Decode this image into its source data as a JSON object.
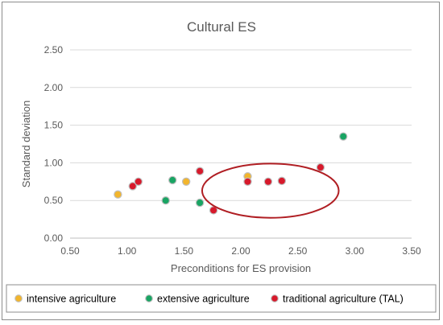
{
  "chart_data": {
    "type": "scatter",
    "title": "Cultural ES",
    "xlabel": "Preconditions for ES provision",
    "ylabel": "Standard deviation",
    "xlim": [
      0.5,
      3.5
    ],
    "ylim": [
      0.0,
      2.5
    ],
    "x_ticks": [
      "0.50",
      "1.00",
      "1.50",
      "2.00",
      "2.50",
      "3.00",
      "3.50"
    ],
    "y_ticks": [
      "0.00",
      "0.50",
      "1.00",
      "1.50",
      "2.00",
      "2.50"
    ],
    "grid": "horizontal",
    "legend_placement": "bottom",
    "series": [
      {
        "name": "intensive agriculture",
        "color": "#f2b52c",
        "points": [
          [
            0.92,
            0.58
          ],
          [
            1.52,
            0.75
          ],
          [
            2.06,
            0.82
          ]
        ]
      },
      {
        "name": "extensive agriculture",
        "color": "#19a463",
        "points": [
          [
            1.34,
            0.5
          ],
          [
            1.4,
            0.77
          ],
          [
            1.64,
            0.47
          ],
          [
            2.9,
            1.35
          ]
        ]
      },
      {
        "name": "traditional agriculture (TAL)",
        "color": "#d7192b",
        "points": [
          [
            1.05,
            0.69
          ],
          [
            1.1,
            0.75
          ],
          [
            1.64,
            0.89
          ],
          [
            1.76,
            0.37
          ],
          [
            2.06,
            0.75
          ],
          [
            2.24,
            0.75
          ],
          [
            2.36,
            0.76
          ],
          [
            2.7,
            0.94
          ]
        ]
      }
    ],
    "annotations": [
      {
        "type": "ellipse",
        "center": [
          2.26,
          0.63
        ],
        "radii": [
          0.6,
          0.36
        ],
        "color": "#b01e23"
      }
    ]
  }
}
